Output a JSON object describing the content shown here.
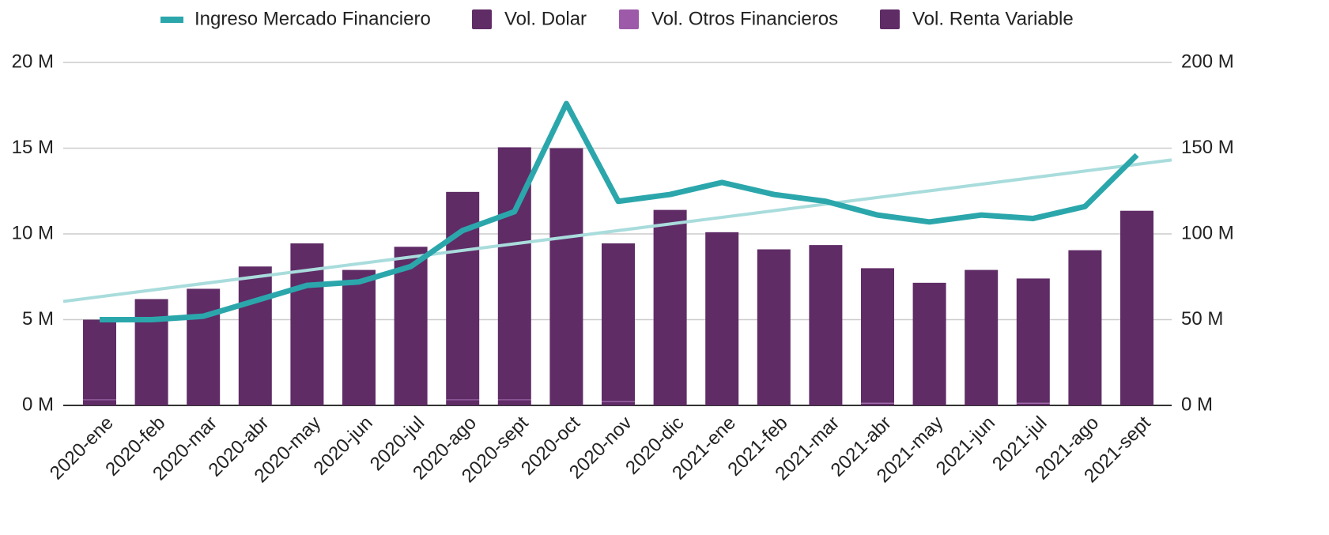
{
  "chart_data": {
    "type": "bar",
    "categories": [
      "2020-ene",
      "2020-feb",
      "2020-mar",
      "2020-abr",
      "2020-may",
      "2020-jun",
      "2020-jul",
      "2020-ago",
      "2020-sept",
      "2020-oct",
      "2020-nov",
      "2020-dic",
      "2021-ene",
      "2021-feb",
      "2021-mar",
      "2021-abr",
      "2021-may",
      "2021-jun",
      "2021-jul",
      "2021-ago",
      "2021-sept"
    ],
    "stacked": true,
    "series": [
      {
        "name": "Ingreso Mercado Financiero",
        "type": "line",
        "axis": "y2",
        "color": "#2ba7ac",
        "trendline": true,
        "trendline_color": "#a9dcdc",
        "values": [
          50,
          50,
          52,
          61,
          70,
          72,
          81,
          102,
          113,
          176,
          119,
          123,
          130,
          123,
          119,
          111,
          107,
          111,
          109,
          116,
          146
        ]
      },
      {
        "name": "Vol. Dolar",
        "type": "bar",
        "color": "#5f2c66",
        "values": [
          0.3,
          0,
          0,
          0,
          0,
          0,
          0,
          0.3,
          0.3,
          0,
          0.2,
          0,
          0,
          0,
          0,
          0.1,
          0,
          0,
          0.1,
          0,
          0
        ]
      },
      {
        "name": "Vol. Otros Financieros",
        "type": "bar",
        "color": "#9c5aa9",
        "values": [
          0.05,
          0,
          0,
          0,
          0,
          0,
          0,
          0.05,
          0.05,
          0,
          0.05,
          0,
          0,
          0,
          0,
          0.05,
          0,
          0,
          0.05,
          0,
          0
        ]
      },
      {
        "name": "Vol. Renta Variable",
        "type": "bar",
        "color": "#5f2c66",
        "values": [
          4.65,
          6.2,
          6.8,
          8.1,
          9.45,
          7.9,
          9.25,
          12.1,
          14.7,
          15.0,
          9.2,
          11.4,
          10.1,
          9.1,
          9.35,
          7.85,
          7.15,
          7.9,
          7.25,
          9.05,
          11.35
        ]
      }
    ],
    "ylim": [
      0,
      20
    ],
    "yticks": [
      {
        "value": 0,
        "label": "0 M"
      },
      {
        "value": 5,
        "label": "5 M"
      },
      {
        "value": 10,
        "label": "10 M"
      },
      {
        "value": 15,
        "label": "15 M"
      },
      {
        "value": 20,
        "label": "20 M"
      }
    ],
    "y2lim": [
      0,
      200
    ],
    "y2ticks": [
      {
        "value": 0,
        "label": "0 M"
      },
      {
        "value": 50,
        "label": "50 M"
      },
      {
        "value": 100,
        "label": "100 M"
      },
      {
        "value": 150,
        "label": "150 M"
      },
      {
        "value": 200,
        "label": "200 M"
      }
    ],
    "grid": true,
    "legend": "top"
  }
}
